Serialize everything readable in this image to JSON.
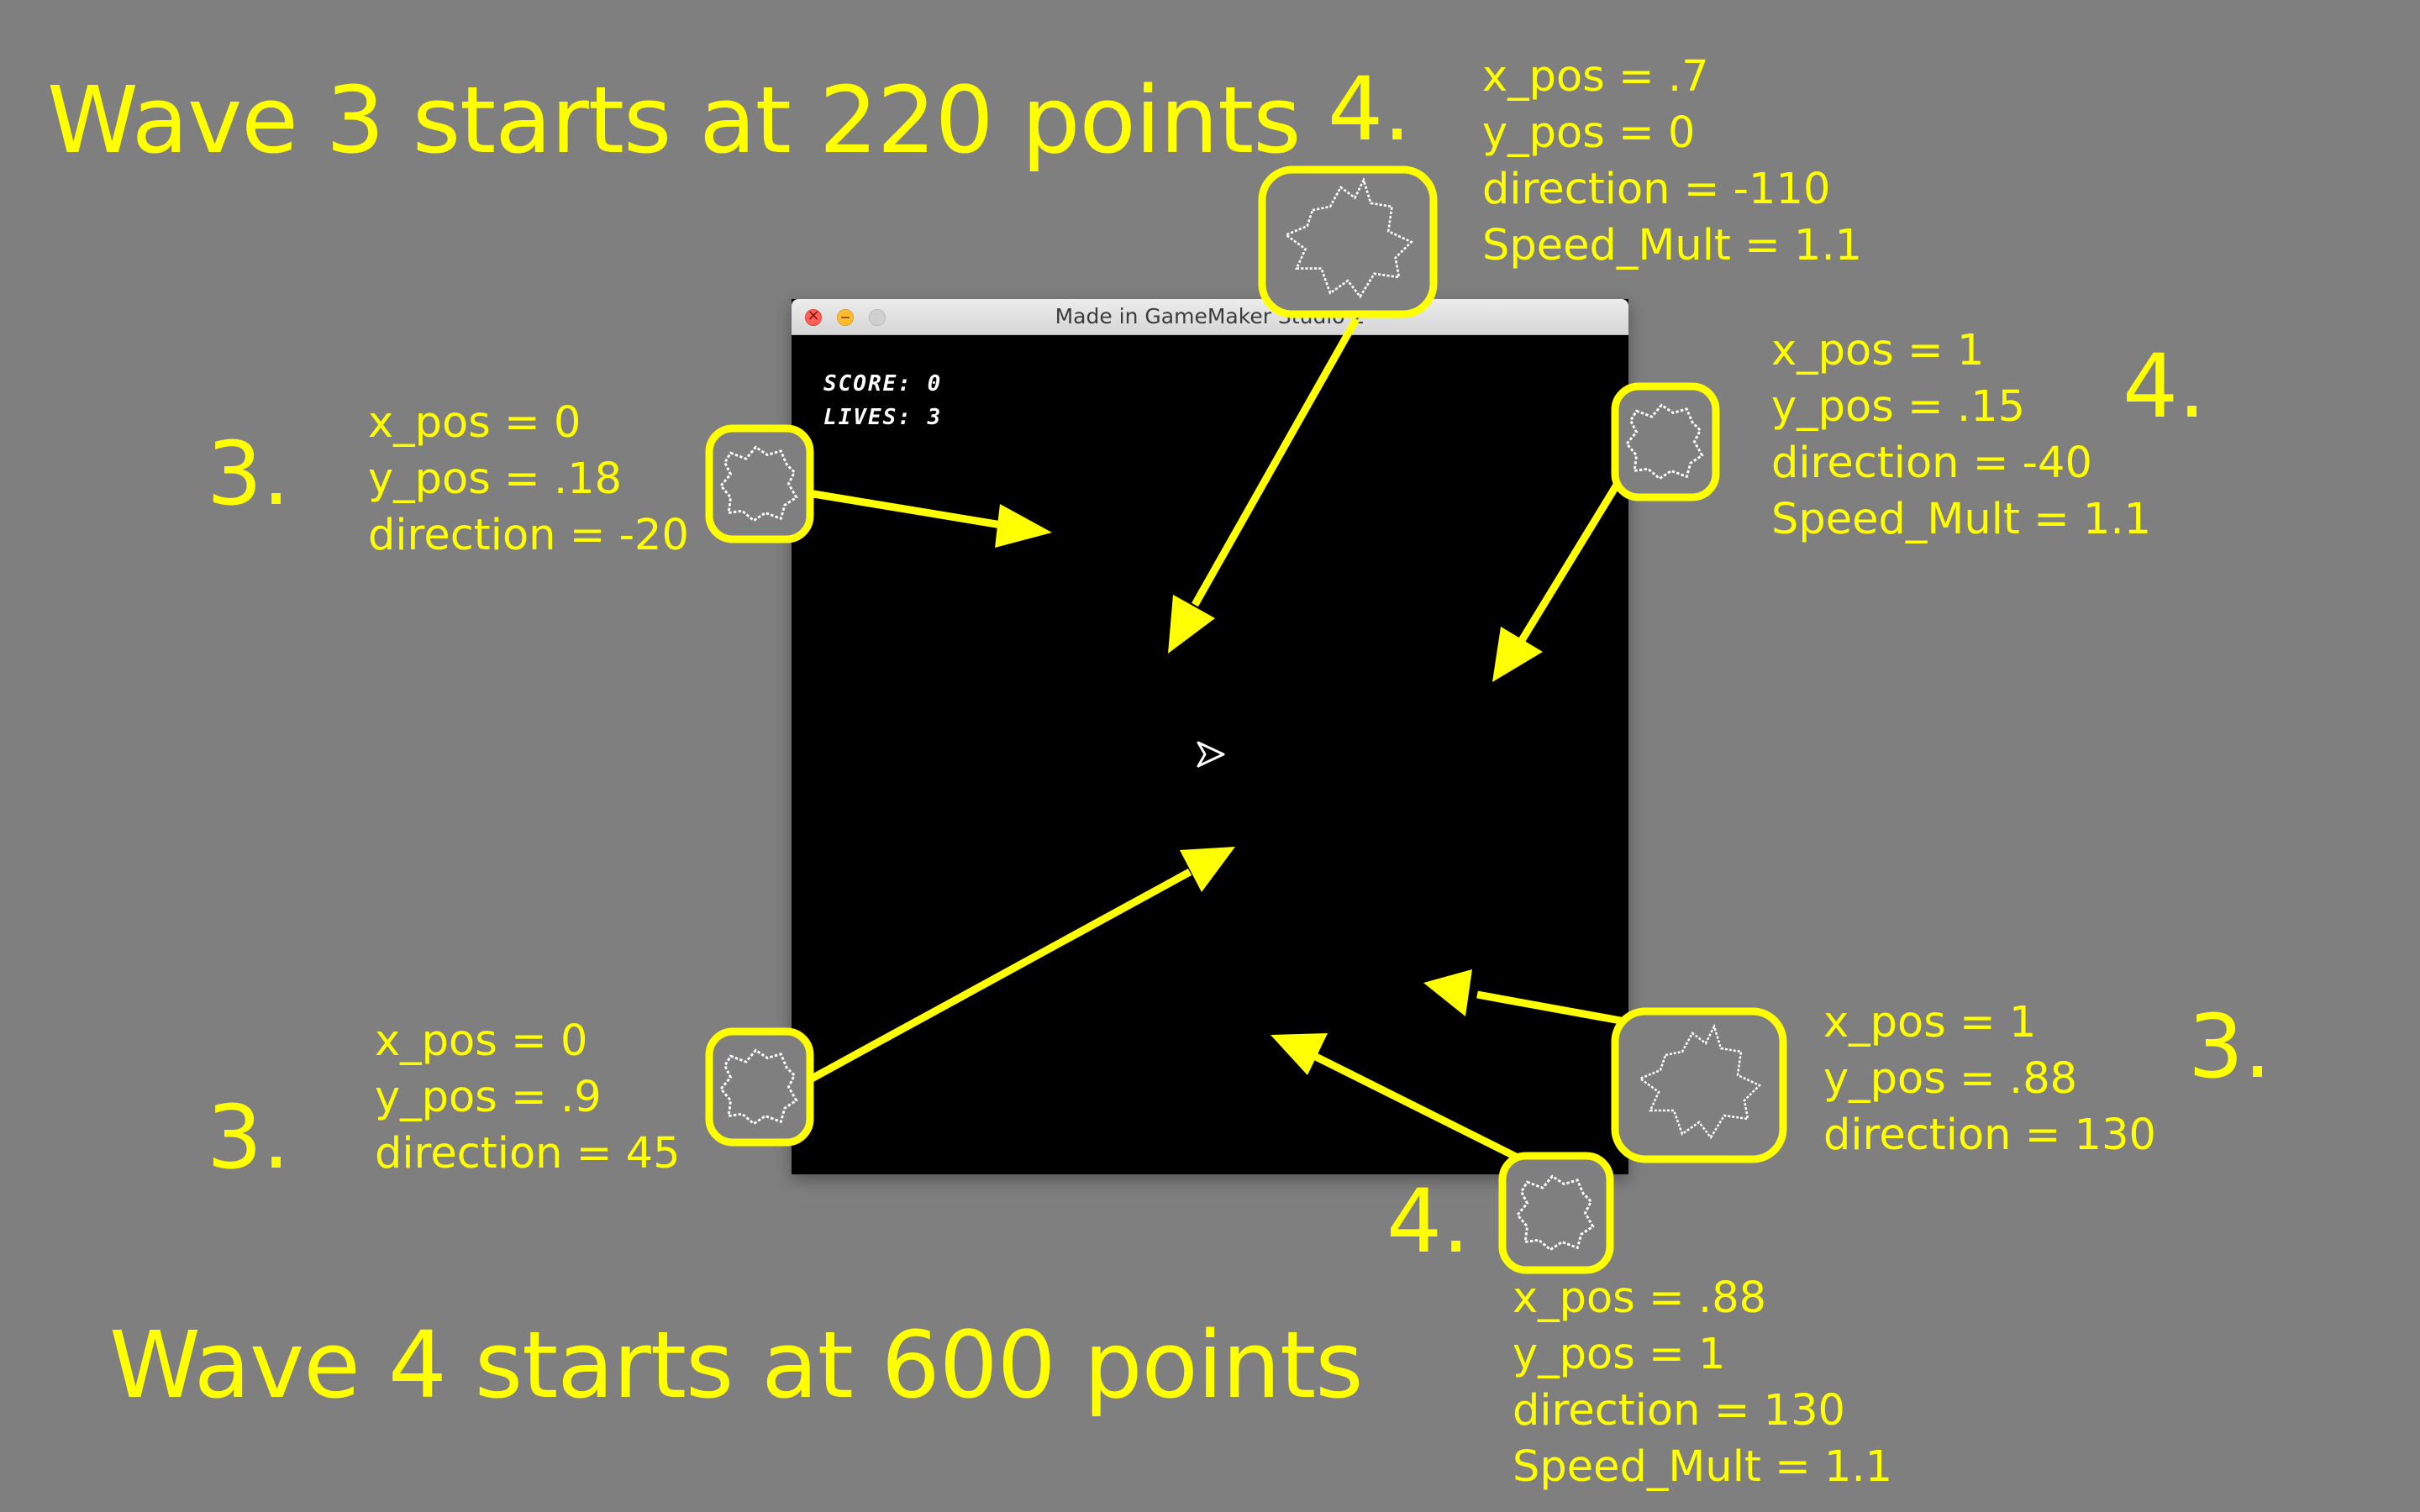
{
  "headlines": {
    "wave3": "Wave 3 starts at 220 points",
    "wave4": "Wave 4 starts at 600 points"
  },
  "window": {
    "title": "Made in GameMaker Studio 2",
    "buttons": [
      "close",
      "minimize",
      "zoom"
    ]
  },
  "hud": {
    "score": "SCORE: 0",
    "lives": "LIVES: 3"
  },
  "spawns": [
    {
      "id": "top-center",
      "wave": "4.",
      "lines": [
        "x_pos = .7",
        "y_pos = 0",
        "direction = -110",
        "Speed_Mult = 1.1"
      ]
    },
    {
      "id": "left-upper",
      "wave": "3.",
      "lines": [
        "x_pos = 0",
        "y_pos = .18",
        "direction = -20"
      ]
    },
    {
      "id": "right-upper",
      "wave": "4.",
      "lines": [
        "x_pos = 1",
        "y_pos = .15",
        "direction = -40",
        "Speed_Mult = 1.1"
      ]
    },
    {
      "id": "left-lower",
      "wave": "3.",
      "lines": [
        "x_pos = 0",
        "y_pos = .9",
        "direction = 45"
      ]
    },
    {
      "id": "right-lower",
      "wave": "3.",
      "lines": [
        "x_pos = 1",
        "y_pos = .88",
        "direction = 130"
      ]
    },
    {
      "id": "bottom-right",
      "wave": "4.",
      "lines": [
        "x_pos = .88",
        "y_pos = 1",
        "direction = 130",
        "Speed_Mult = 1.1"
      ]
    }
  ],
  "colors": {
    "background": "#7f7f7f",
    "annotation": "#ffff00",
    "game_background": "#000000",
    "sprite": "#ffffff"
  },
  "icons": [
    "ship-icon",
    "asteroid-icon",
    "arrow-icon"
  ]
}
